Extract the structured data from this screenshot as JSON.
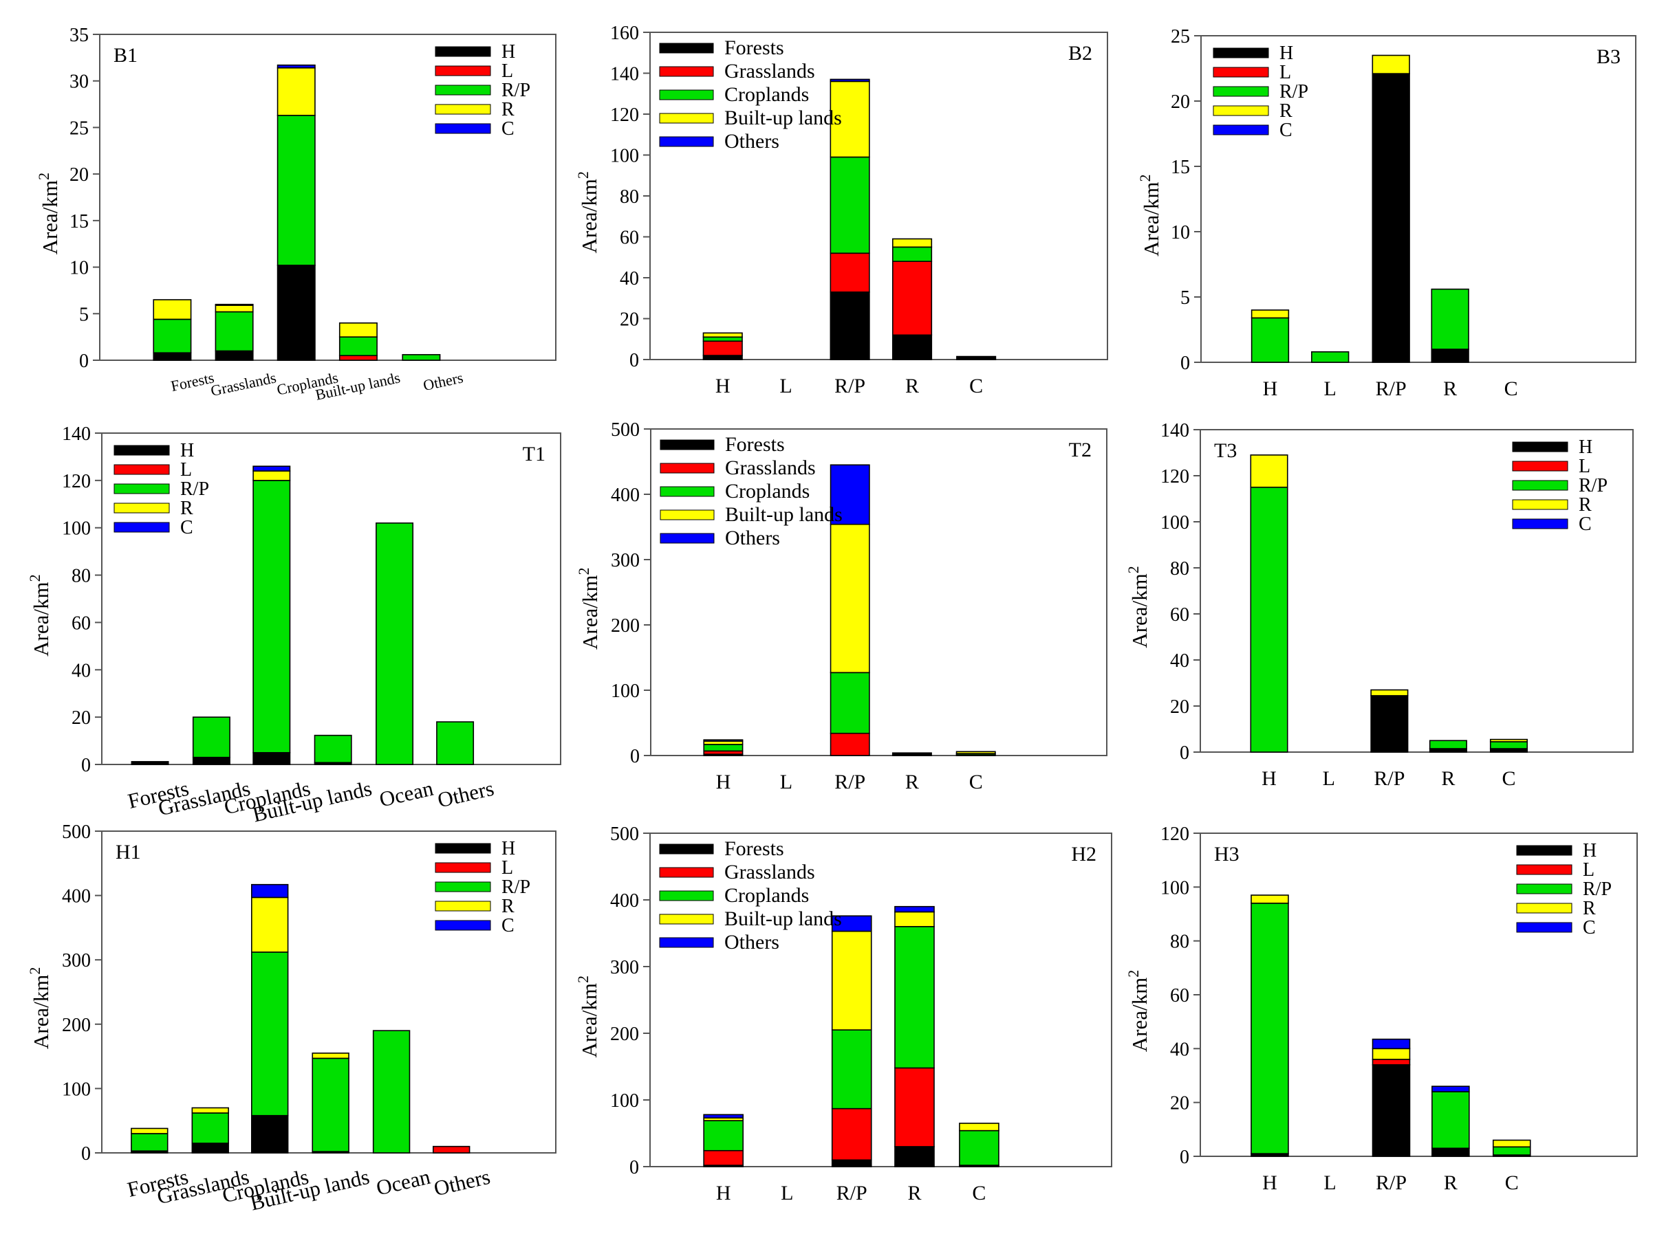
{
  "colors": {
    "black": "#000000",
    "red": "#ff0000",
    "green": "#00e000",
    "yellow": "#ffff00",
    "blue": "#0000ff",
    "frame": "#555555"
  },
  "chart_data": [
    {
      "id": "B1",
      "type": "bar",
      "stacked": true,
      "title": "B1",
      "ylabel": "Area/km",
      "ylabel_sup": "2",
      "ylim": [
        0,
        35
      ],
      "yticks": [
        0,
        5,
        10,
        15,
        20,
        25,
        30,
        35
      ],
      "categories": [
        "Forests",
        "Grasslands",
        "Croplands",
        "Built-up lands",
        "Others"
      ],
      "xtick_style": "rot-small",
      "legend_position": "top-right",
      "series": [
        {
          "name": "H",
          "color": "#000000",
          "values": [
            0.8,
            1.0,
            10.2,
            0,
            0
          ]
        },
        {
          "name": "L",
          "color": "#ff0000",
          "values": [
            0,
            0,
            0,
            0.5,
            0
          ]
        },
        {
          "name": "R/P",
          "color": "#00e000",
          "values": [
            3.6,
            4.2,
            16.1,
            2.0,
            0.6
          ]
        },
        {
          "name": "R",
          "color": "#ffff00",
          "values": [
            2.1,
            0.7,
            5.1,
            1.5,
            0
          ]
        },
        {
          "name": "C",
          "color": "#0000ff",
          "values": [
            0,
            0.1,
            0.3,
            0,
            0
          ]
        }
      ]
    },
    {
      "id": "B2",
      "type": "bar",
      "stacked": true,
      "title": "B2",
      "ylabel": "Area/km",
      "ylabel_sup": "2",
      "ylim": [
        0,
        160
      ],
      "yticks": [
        0,
        20,
        40,
        60,
        80,
        100,
        120,
        140,
        160
      ],
      "categories": [
        "H",
        "L",
        "R/P",
        "R",
        "C"
      ],
      "xtick_style": "flat",
      "legend_position": "top-left",
      "series": [
        {
          "name": "Forests",
          "color": "#000000",
          "values": [
            2,
            0,
            33,
            12,
            1.5
          ]
        },
        {
          "name": "Grasslands",
          "color": "#ff0000",
          "values": [
            7,
            0,
            19,
            36,
            0
          ]
        },
        {
          "name": "Croplands",
          "color": "#00e000",
          "values": [
            2,
            0,
            47,
            7,
            0
          ]
        },
        {
          "name": "Built-up lands",
          "color": "#ffff00",
          "values": [
            2,
            0,
            37,
            4,
            0
          ]
        },
        {
          "name": "Others",
          "color": "#0000ff",
          "values": [
            0,
            0,
            1,
            0,
            0
          ]
        }
      ]
    },
    {
      "id": "B3",
      "type": "bar",
      "stacked": true,
      "title": "B3",
      "ylabel": "Area/km",
      "ylabel_sup": "2",
      "ylim": [
        0,
        25
      ],
      "yticks": [
        0,
        5,
        10,
        15,
        20,
        25
      ],
      "categories": [
        "H",
        "L",
        "R/P",
        "R",
        "C"
      ],
      "xtick_style": "flat",
      "legend_position": "top-left",
      "series": [
        {
          "name": "H",
          "color": "#000000",
          "values": [
            0,
            0,
            22.1,
            1.0,
            0
          ]
        },
        {
          "name": "L",
          "color": "#ff0000",
          "values": [
            0,
            0,
            0,
            0,
            0
          ]
        },
        {
          "name": "R/P",
          "color": "#00e000",
          "values": [
            3.4,
            0.8,
            0,
            4.6,
            0
          ]
        },
        {
          "name": "R",
          "color": "#ffff00",
          "values": [
            0.6,
            0,
            1.4,
            0,
            0
          ]
        },
        {
          "name": "C",
          "color": "#0000ff",
          "values": [
            0,
            0,
            0,
            0,
            0
          ]
        }
      ]
    },
    {
      "id": "T1",
      "type": "bar",
      "stacked": true,
      "title": "T1",
      "ylabel": "Area/km",
      "ylabel_sup": "2",
      "ylim": [
        0,
        140
      ],
      "yticks": [
        0,
        20,
        40,
        60,
        80,
        100,
        120,
        140
      ],
      "categories": [
        "Forests",
        "Grasslands",
        "Croplands",
        "Built-up lands",
        "Ocean",
        "Others"
      ],
      "xtick_style": "rot-large",
      "legend_position": "top-left",
      "series": [
        {
          "name": "H",
          "color": "#000000",
          "values": [
            1.2,
            3,
            5,
            0.8,
            0,
            0
          ]
        },
        {
          "name": "L",
          "color": "#ff0000",
          "values": [
            0,
            0,
            0,
            0,
            0,
            0
          ]
        },
        {
          "name": "R/P",
          "color": "#00e000",
          "values": [
            0,
            17,
            115,
            11.5,
            102,
            18
          ]
        },
        {
          "name": "R",
          "color": "#ffff00",
          "values": [
            0,
            0,
            4,
            0,
            0,
            0
          ]
        },
        {
          "name": "C",
          "color": "#0000ff",
          "values": [
            0,
            0,
            2,
            0,
            0,
            0
          ]
        }
      ]
    },
    {
      "id": "T2",
      "type": "bar",
      "stacked": true,
      "title": "T2",
      "ylabel": "Area/km",
      "ylabel_sup": "2",
      "ylim": [
        0,
        500
      ],
      "yticks": [
        0,
        100,
        200,
        300,
        400,
        500
      ],
      "categories": [
        "H",
        "L",
        "R/P",
        "R",
        "C"
      ],
      "xtick_style": "flat",
      "legend_position": "top-left",
      "series": [
        {
          "name": "Forests",
          "color": "#000000",
          "values": [
            2,
            0,
            0,
            4,
            1
          ]
        },
        {
          "name": "Grasslands",
          "color": "#ff0000",
          "values": [
            5,
            0,
            34,
            0,
            0
          ]
        },
        {
          "name": "Croplands",
          "color": "#00e000",
          "values": [
            10,
            0,
            93,
            0,
            2
          ]
        },
        {
          "name": "Built-up lands",
          "color": "#ffff00",
          "values": [
            5,
            0,
            227,
            0,
            3
          ]
        },
        {
          "name": "Others",
          "color": "#0000ff",
          "values": [
            2,
            0,
            91,
            0,
            0
          ]
        }
      ]
    },
    {
      "id": "T3",
      "type": "bar",
      "stacked": true,
      "title": "T3",
      "ylabel": "Area/km",
      "ylabel_sup": "2",
      "ylim": [
        0,
        140
      ],
      "yticks": [
        0,
        20,
        40,
        60,
        80,
        100,
        120,
        140
      ],
      "categories": [
        "H",
        "L",
        "R/P",
        "R",
        "C"
      ],
      "xtick_style": "flat",
      "legend_position": "top-right",
      "series": [
        {
          "name": "H",
          "color": "#000000",
          "values": [
            0,
            0,
            24.5,
            1.5,
            1.5
          ]
        },
        {
          "name": "L",
          "color": "#ff0000",
          "values": [
            0,
            0,
            0,
            0,
            0
          ]
        },
        {
          "name": "R/P",
          "color": "#00e000",
          "values": [
            115,
            0,
            0,
            3.5,
            3
          ]
        },
        {
          "name": "R",
          "color": "#ffff00",
          "values": [
            14,
            0,
            2.5,
            0,
            1
          ]
        },
        {
          "name": "C",
          "color": "#0000ff",
          "values": [
            0,
            0,
            0,
            0,
            0
          ]
        }
      ]
    },
    {
      "id": "H1",
      "type": "bar",
      "stacked": true,
      "title": "H1",
      "ylabel": "Area/km",
      "ylabel_sup": "2",
      "ylim": [
        0,
        500
      ],
      "yticks": [
        0,
        100,
        200,
        300,
        400,
        500
      ],
      "categories": [
        "Forests",
        "Grasslands",
        "Croplands",
        "Built-up lands",
        "Ocean",
        "Others"
      ],
      "xtick_style": "rot-large",
      "legend_position": "top-right",
      "series": [
        {
          "name": "H",
          "color": "#000000",
          "values": [
            3,
            15,
            58,
            2,
            0,
            0
          ]
        },
        {
          "name": "L",
          "color": "#ff0000",
          "values": [
            0,
            0,
            0,
            0,
            0,
            10
          ]
        },
        {
          "name": "R/P",
          "color": "#00e000",
          "values": [
            27,
            47,
            254,
            145,
            190,
            0
          ]
        },
        {
          "name": "R",
          "color": "#ffff00",
          "values": [
            8,
            8,
            85,
            8,
            0,
            0
          ]
        },
        {
          "name": "C",
          "color": "#0000ff",
          "values": [
            0,
            0,
            20,
            0,
            0,
            0
          ]
        }
      ]
    },
    {
      "id": "H2",
      "type": "bar",
      "stacked": true,
      "title": "H2",
      "ylabel": "Area/km",
      "ylabel_sup": "2",
      "ylim": [
        0,
        500
      ],
      "yticks": [
        0,
        100,
        200,
        300,
        400,
        500
      ],
      "categories": [
        "H",
        "L",
        "R/P",
        "R",
        "C"
      ],
      "xtick_style": "flat",
      "legend_position": "top-left",
      "series": [
        {
          "name": "Forests",
          "color": "#000000",
          "values": [
            2,
            0,
            10,
            30,
            2
          ]
        },
        {
          "name": "Grasslands",
          "color": "#ff0000",
          "values": [
            22,
            0,
            77,
            118,
            0
          ]
        },
        {
          "name": "Croplands",
          "color": "#00e000",
          "values": [
            45,
            0,
            118,
            212,
            52
          ]
        },
        {
          "name": "Built-up lands",
          "color": "#ffff00",
          "values": [
            4,
            0,
            148,
            22,
            11
          ]
        },
        {
          "name": "Others",
          "color": "#0000ff",
          "values": [
            5,
            0,
            23,
            8,
            0
          ]
        }
      ]
    },
    {
      "id": "H3",
      "type": "bar",
      "stacked": true,
      "title": "H3",
      "ylabel": "Area/km",
      "ylabel_sup": "2",
      "ylim": [
        0,
        120
      ],
      "yticks": [
        0,
        20,
        40,
        60,
        80,
        100,
        120
      ],
      "categories": [
        "H",
        "L",
        "R/P",
        "R",
        "C"
      ],
      "xtick_style": "flat",
      "legend_position": "top-right",
      "series": [
        {
          "name": "H",
          "color": "#000000",
          "values": [
            1,
            0,
            34,
            3,
            0.5
          ]
        },
        {
          "name": "L",
          "color": "#ff0000",
          "values": [
            0,
            0,
            2,
            0,
            0
          ]
        },
        {
          "name": "R/P",
          "color": "#00e000",
          "values": [
            93,
            0,
            0,
            21,
            3
          ]
        },
        {
          "name": "R",
          "color": "#ffff00",
          "values": [
            3,
            0,
            4,
            0,
            2.5
          ]
        },
        {
          "name": "C",
          "color": "#0000ff",
          "values": [
            0,
            0,
            3.5,
            2,
            0
          ]
        }
      ]
    }
  ]
}
